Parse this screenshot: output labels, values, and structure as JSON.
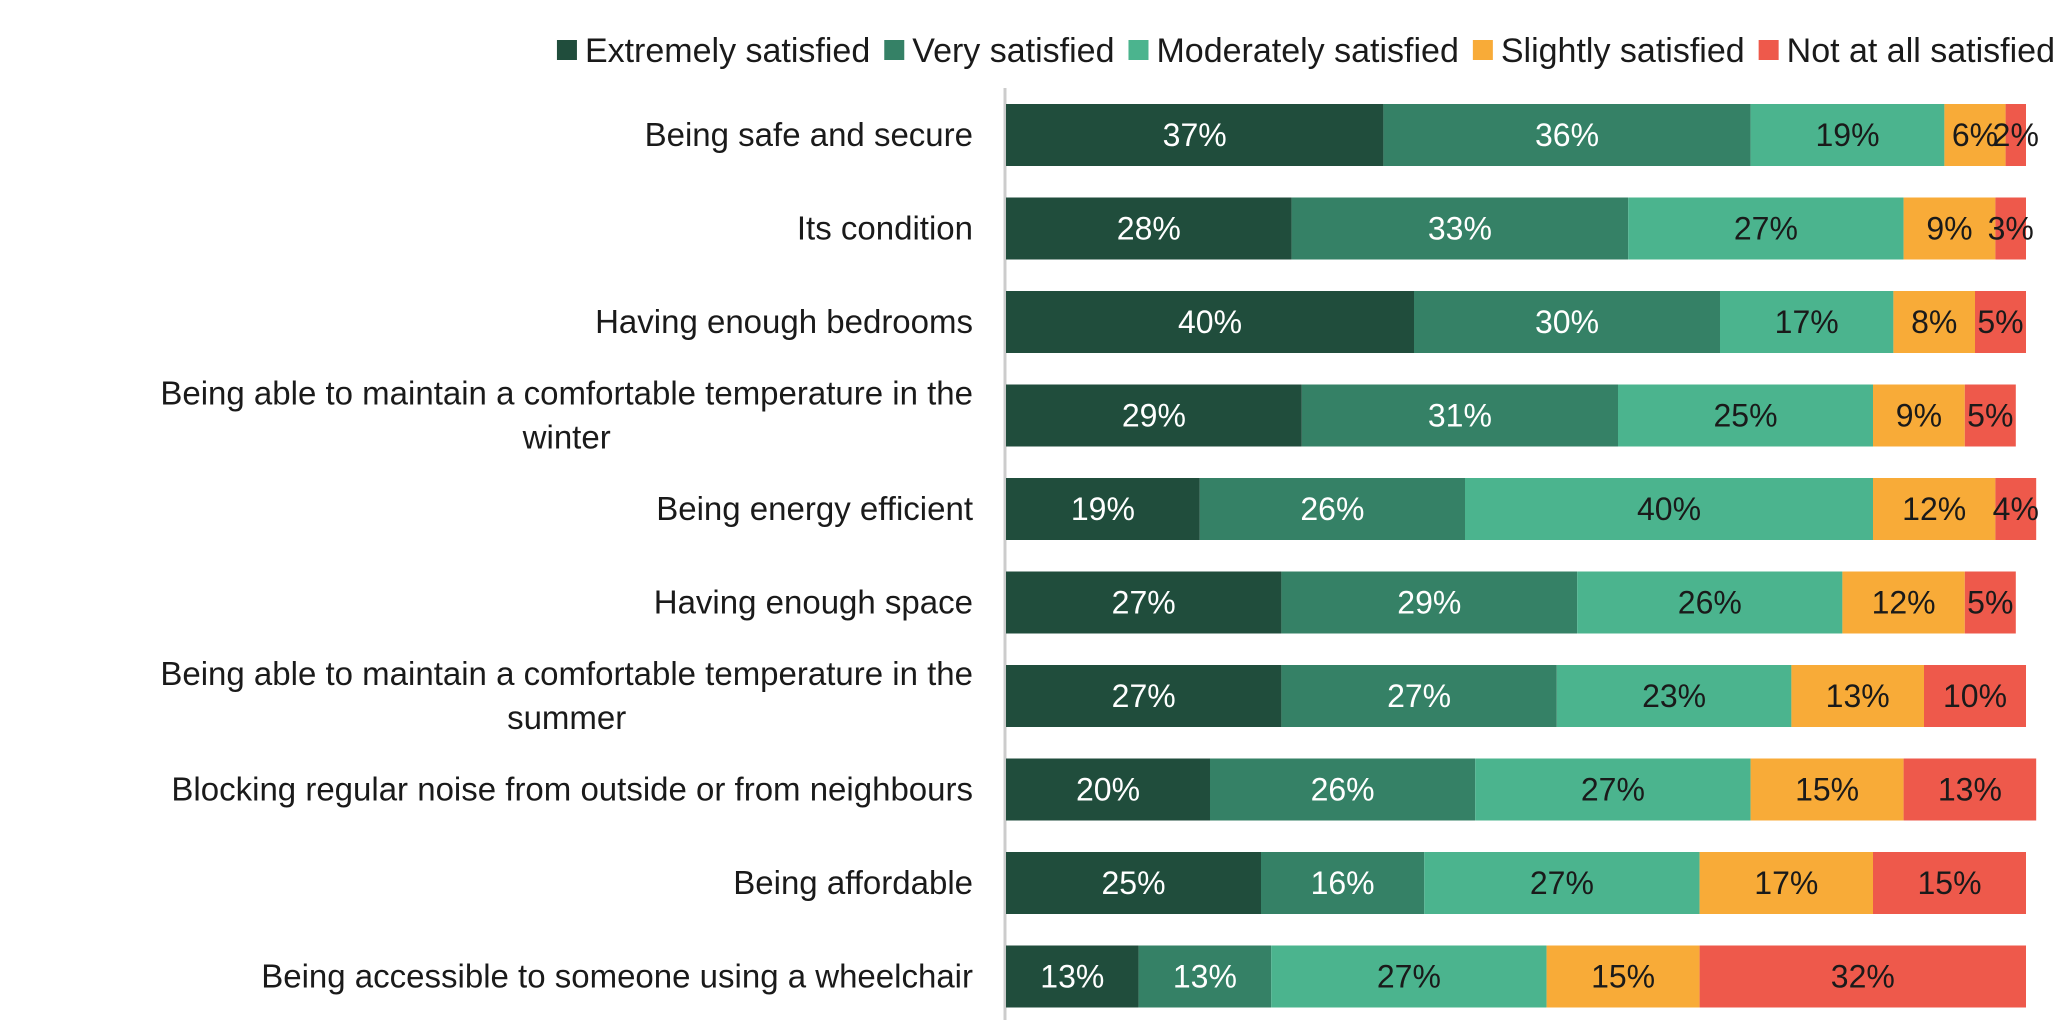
{
  "chart_data": {
    "type": "bar",
    "orientation": "horizontal",
    "stacked": true,
    "unit": "%",
    "xlim": [
      0,
      100
    ],
    "grid": false,
    "legend_position": "top-right",
    "categories": [
      "Being safe and secure",
      "Its condition",
      "Having enough bedrooms",
      "Being able to maintain a comfortable temperature in the winter",
      "Being energy efficient",
      "Having enough space",
      "Being able to maintain a comfortable temperature in the summer",
      "Blocking regular noise from outside or from neighbours",
      "Being affordable",
      "Being accessible to someone using a wheelchair"
    ],
    "series": [
      {
        "name": "Extremely satisfied",
        "color": "#204d3c",
        "label_color": "#ffffff",
        "values": [
          37,
          28,
          40,
          29,
          19,
          27,
          27,
          20,
          25,
          13
        ]
      },
      {
        "name": "Very satisfied",
        "color": "#358166",
        "label_color": "#ffffff",
        "values": [
          36,
          33,
          30,
          31,
          26,
          29,
          27,
          26,
          16,
          13
        ]
      },
      {
        "name": "Moderately satisfied",
        "color": "#4bb48e",
        "label_color": "#1a1a1a",
        "values": [
          19,
          27,
          17,
          25,
          40,
          26,
          23,
          27,
          27,
          27
        ]
      },
      {
        "name": "Slightly satisfied",
        "color": "#f8ab38",
        "label_color": "#1a1a1a",
        "values": [
          6,
          9,
          8,
          9,
          12,
          12,
          13,
          15,
          17,
          15
        ]
      },
      {
        "name": "Not at all satisfied",
        "color": "#ee594b",
        "label_color": "#1a1a1a",
        "values": [
          2,
          3,
          5,
          5,
          4,
          5,
          10,
          13,
          15,
          32
        ]
      }
    ]
  }
}
